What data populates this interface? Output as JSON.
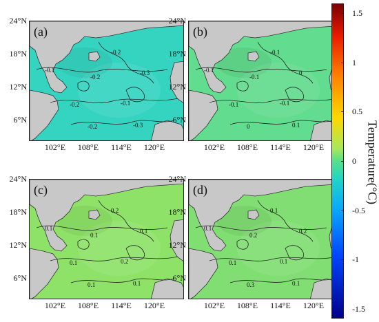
{
  "panels": [
    {
      "label": "(a)",
      "fill": "#35d4c0",
      "contours": [
        "-0.1",
        "-0.2",
        "-0.3",
        "-0.2",
        "-0.1",
        "-0.2",
        "-0.3",
        "-0.2"
      ]
    },
    {
      "label": "(b)",
      "fill": "#62dc8e",
      "contours": [
        "-0.1",
        "-0.1",
        "0",
        "-0.1",
        "-0.1",
        "0",
        "0.1",
        "-0.1"
      ]
    },
    {
      "label": "(c)",
      "fill": "#8ee268",
      "contours": [
        "0.1",
        "0.1",
        "0.1",
        "0.1",
        "0.2",
        "0.1",
        "0.1",
        "0.2"
      ]
    },
    {
      "label": "(d)",
      "fill": "#80de72",
      "contours": [
        "0.1",
        "0.2",
        "0.2",
        "0.1",
        "0.1",
        "0.3",
        "0.1",
        "0.1"
      ]
    }
  ],
  "lat_labels": [
    "24°N",
    "18°N",
    "12°N",
    "6°N"
  ],
  "lon_labels": [
    "102°E",
    "108°E",
    "114°E",
    "120°E"
  ],
  "colorbar": {
    "title": "Temperature(°C)",
    "ticks": [
      "1.5",
      "1",
      "0.5",
      "0",
      "-0.5",
      "-1",
      "-1.5"
    ],
    "range": [
      -1.6,
      1.6
    ],
    "colors": {
      "high": "#7a0000",
      "zero": "#56e08a",
      "low": "#00008c"
    }
  }
}
